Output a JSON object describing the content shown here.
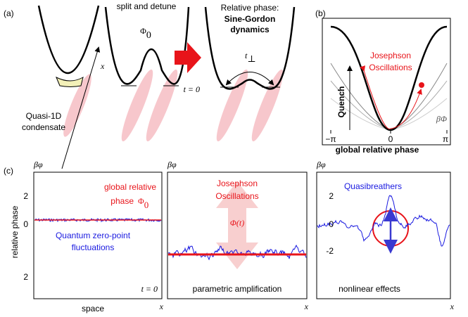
{
  "panel_a": {
    "label": "(a)",
    "step1": "split and detune",
    "phi0": {
      "symbol": "Φ",
      "sub": "0"
    },
    "title": [
      "Relative phase:",
      "Sine-Gordon",
      "dynamics"
    ],
    "x": "x",
    "tperp": {
      "symbol": "t",
      "sub": "⊥"
    },
    "t0": "t = 0",
    "condensate": [
      "Quasi-1D",
      "condensate"
    ]
  },
  "panel_b": {
    "label": "(b)",
    "oscillations": [
      "Josephson",
      "Oscillations"
    ],
    "quench": "Quench",
    "axis": "βΦ",
    "ticks": [
      "−π",
      "0",
      "π"
    ],
    "xlabel": "global relative phase"
  },
  "panel_c": {
    "label": "(c)",
    "ylabel": "relative phase",
    "axis": "βφ",
    "x": "x",
    "left": {
      "text": [
        "global relative",
        "phase"
      ],
      "phi0": {
        "symbol": "Φ",
        "sub": "0"
      },
      "fluct": [
        "Quantum zero-point",
        "fluctuations"
      ],
      "t0": "t = 0",
      "xlabel": "space",
      "ticks": [
        "2",
        "0",
        "2"
      ]
    },
    "middle": {
      "text": [
        "Josephson",
        "Oscillations"
      ],
      "phit": "Φ(t)",
      "caption": "parametric amplification"
    },
    "right": {
      "text": "Quasibreathers",
      "caption": "nonlinear effects",
      "ticks": [
        "2",
        "0",
        "-2"
      ]
    }
  }
}
